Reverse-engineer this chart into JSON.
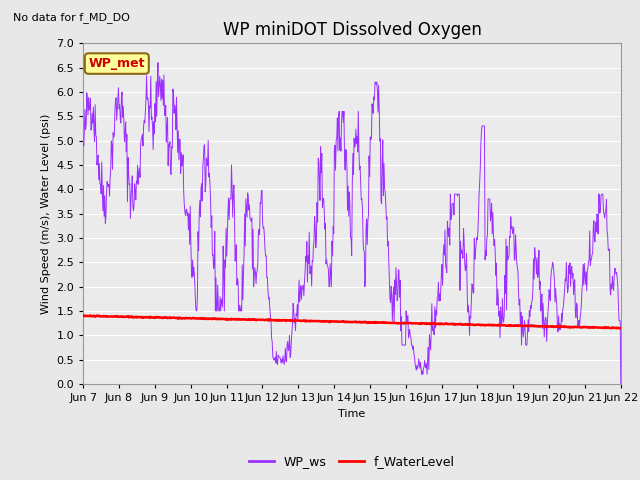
{
  "title": "WP miniDOT Dissolved Oxygen",
  "top_left_text": "No data for f_MD_DO",
  "ylabel": "Wind Speed (m/s), Water Level (psi)",
  "xlabel": "Time",
  "ylim": [
    0.0,
    7.0
  ],
  "yticks": [
    0.0,
    0.5,
    1.0,
    1.5,
    2.0,
    2.5,
    3.0,
    3.5,
    4.0,
    4.5,
    5.0,
    5.5,
    6.0,
    6.5,
    7.0
  ],
  "xtick_labels": [
    "Jun 7",
    "Jun 8",
    "Jun 9",
    "Jun 10",
    "Jun 11",
    "Jun 12",
    "Jun 13",
    "Jun 14",
    "Jun 15",
    "Jun 16",
    "Jun 17",
    "Jun 18",
    "Jun 19",
    "Jun 20",
    "Jun 21",
    "Jun 22"
  ],
  "legend_label_ws": "WP_ws",
  "legend_label_wl": "f_WaterLevel",
  "ws_color": "#9B30FF",
  "wl_color": "#FF0000",
  "annotation_box_label": "WP_met",
  "annotation_box_color": "#FFFF99",
  "annotation_box_edge_color": "#8B6914",
  "annotation_text_color": "#CC0000",
  "bg_color": "#E8E8E8",
  "plot_bg_color": "#EBEBEB",
  "grid_color": "#FFFFFF",
  "title_fontsize": 12,
  "label_fontsize": 8,
  "tick_fontsize": 8
}
